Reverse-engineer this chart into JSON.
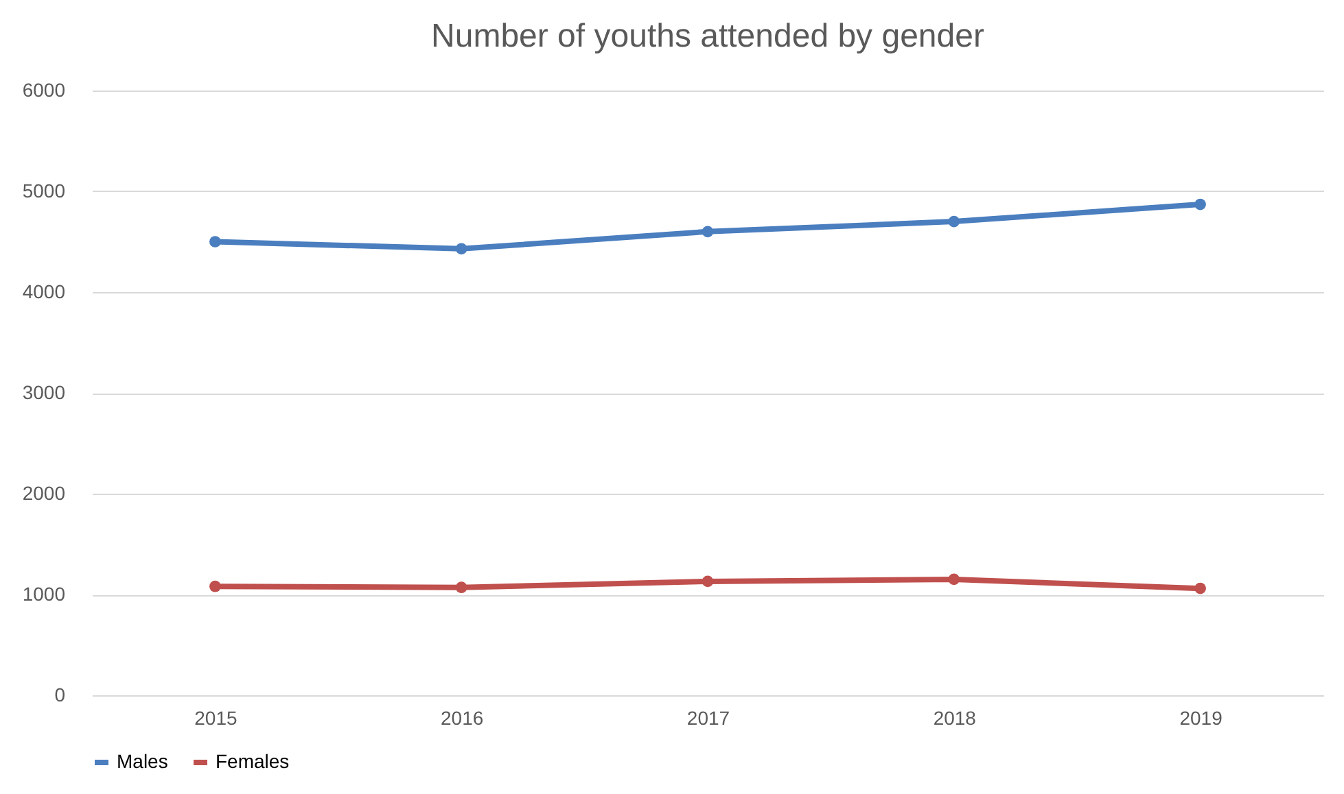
{
  "chart_data": {
    "type": "line",
    "title": "Number of youths attended by gender",
    "categories": [
      "2015",
      "2016",
      "2017",
      "2018",
      "2019"
    ],
    "series": [
      {
        "name": "Males",
        "color": "#4a7ebf",
        "values": [
          4500,
          4430,
          4600,
          4700,
          4870
        ]
      },
      {
        "name": "Females",
        "color": "#c0504d",
        "values": [
          1080,
          1070,
          1130,
          1150,
          1060
        ]
      }
    ],
    "ylim": [
      0,
      6000
    ],
    "yticks": [
      0,
      1000,
      2000,
      3000,
      4000,
      5000,
      6000
    ],
    "grid": "y",
    "legend": "bottom",
    "marker": "circle",
    "line_style": "solid"
  }
}
